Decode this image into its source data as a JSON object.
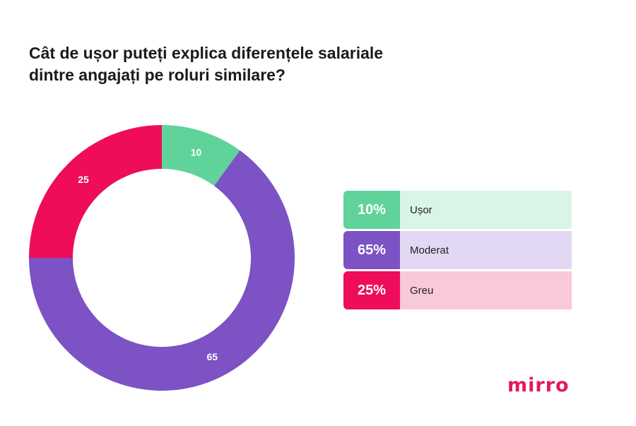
{
  "title_lines": [
    "Cât de ușor puteți explica diferențele salariale",
    "dintre angajați pe roluri similare?"
  ],
  "chart_data": {
    "type": "pie",
    "variant": "donut",
    "title": "Cât de ușor puteți explica diferențele salariale dintre angajați pe roluri similare?",
    "categories": [
      "Ușor",
      "Moderat",
      "Greu"
    ],
    "values": [
      10,
      65,
      25
    ],
    "colors": [
      "#5fd39a",
      "#7c52c4",
      "#ee0c5b"
    ]
  },
  "legend": [
    {
      "pct": "10%",
      "label": "Ușor",
      "color": "#5fd39a",
      "bg": "#d9f5e7"
    },
    {
      "pct": "65%",
      "label": "Moderat",
      "color": "#7c52c4",
      "bg": "#e2d8f3"
    },
    {
      "pct": "25%",
      "label": "Greu",
      "color": "#ee0c5b",
      "bg": "#f9c8d9"
    }
  ],
  "logo": "mirro"
}
